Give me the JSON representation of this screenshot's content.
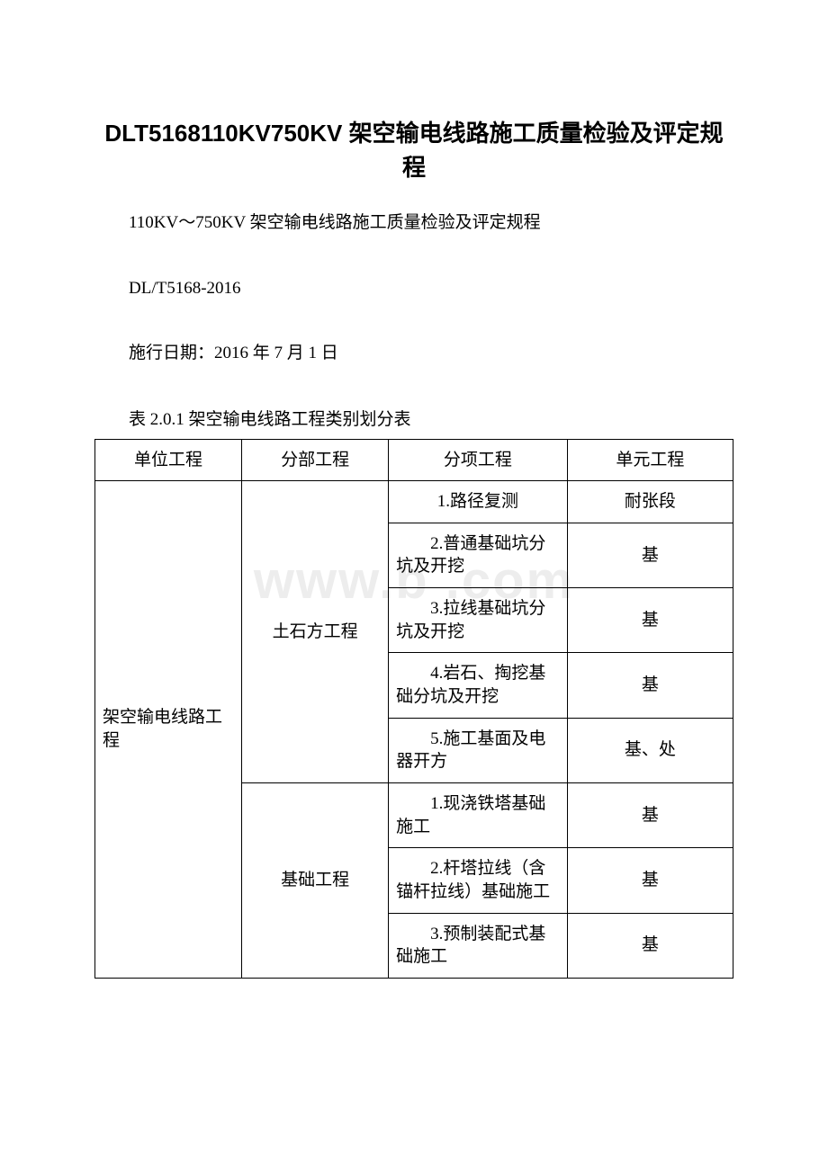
{
  "title": "DLT5168110KV750KV 架空输电线路施工质量检验及评定规程",
  "paragraphs": {
    "p1": "110KV～750KV 架空输电线路施工质量检验及评定规程",
    "p2": "DL/T5168-2016",
    "p3": "施行日期：2016 年 7 月 1 日"
  },
  "table": {
    "caption": "表 2.0.1 架空输电线路工程类别划分表",
    "headers": {
      "h1": "单位工程",
      "h2": "分部工程",
      "h3": "分项工程",
      "h4": "单元工程"
    },
    "unit_project": "架空输电线路工程",
    "subparts": {
      "sp1_name": "土石方工程",
      "sp2_name": "基础工程"
    },
    "rows": {
      "r1_item": "1.路径复测",
      "r1_unit": "耐张段",
      "r2_item": "2.普通基础坑分坑及开挖",
      "r2_unit": "基",
      "r3_item": "3.拉线基础坑分坑及开挖",
      "r3_unit": "基",
      "r4_item": "4.岩石、掏挖基础分坑及开挖",
      "r4_unit": "基",
      "r5_item": "5.施工基面及电器开方",
      "r5_unit": "基、处",
      "r6_item": "1.现浇铁塔基础施工",
      "r6_unit": "基",
      "r7_item": "2.杆塔拉线（含锚杆拉线）基础施工",
      "r7_unit": "基",
      "r8_item": "3.预制装配式基础施工",
      "r8_unit": "基"
    }
  },
  "watermark": "www.b        .com",
  "colors": {
    "text": "#000000",
    "background": "#ffffff",
    "border": "#000000",
    "watermark": "rgba(0,0,0,0.07)"
  }
}
